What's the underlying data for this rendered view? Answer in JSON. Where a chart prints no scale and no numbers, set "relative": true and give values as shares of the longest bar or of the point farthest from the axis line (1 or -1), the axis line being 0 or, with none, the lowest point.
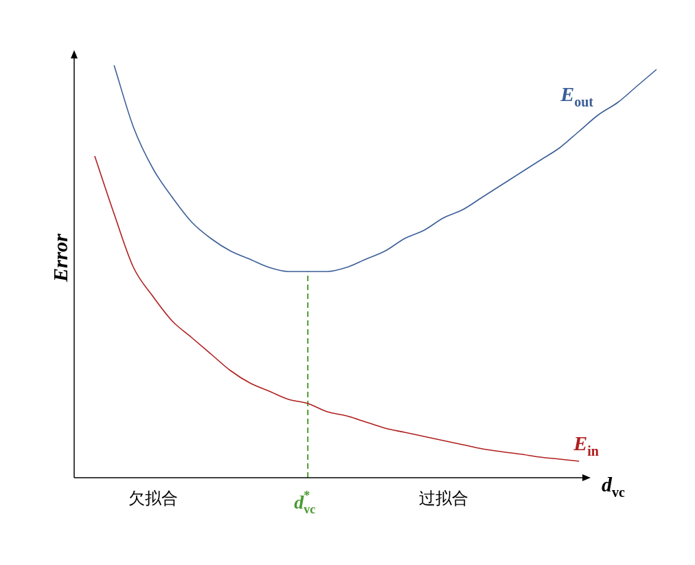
{
  "chart_data": {
    "type": "line",
    "relative": true,
    "marker": "none",
    "xlabel": "d$_{vc}$",
    "ylabel": "Error",
    "categories": [
      null,
      null,
      null,
      "欠拟合",
      null,
      null,
      null,
      null,
      null,
      null,
      null,
      "d$^{*}$$_{vc}$",
      null,
      null,
      null,
      null,
      null,
      null,
      "过拟合",
      null,
      null,
      null,
      null,
      null,
      null,
      null,
      null,
      null,
      null,
      null
    ],
    "series": [
      {
        "name": "E$_{out}$",
        "color": "#3b5e98",
        "values": [
          null,
          1.0,
          0.85,
          0.75,
          0.68,
          0.62,
          0.58,
          0.55,
          0.53,
          0.51,
          0.5,
          0.5,
          0.5,
          0.51,
          0.53,
          0.55,
          0.58,
          0.6,
          0.63,
          0.65,
          0.68,
          0.71,
          0.74,
          0.77,
          0.8,
          0.84,
          0.88,
          0.91,
          0.95,
          0.99
        ]
      },
      {
        "name": "E$_{in}$",
        "color": "#b01e1e",
        "values": [
          0.78,
          0.64,
          0.51,
          0.44,
          0.38,
          0.34,
          0.3,
          0.26,
          0.23,
          0.21,
          0.19,
          0.18,
          0.16,
          0.15,
          0.135,
          0.12,
          0.11,
          0.1,
          0.09,
          0.08,
          0.07,
          0.063,
          0.057,
          0.05,
          0.045,
          0.04,
          null,
          null,
          null,
          null
        ]
      }
    ],
    "ref_lines": [
      {
        "axis": "x",
        "value": "d$^{*}$$_{vc}$",
        "color": "#4a9a2f",
        "line_style": "dashed"
      }
    ]
  }
}
